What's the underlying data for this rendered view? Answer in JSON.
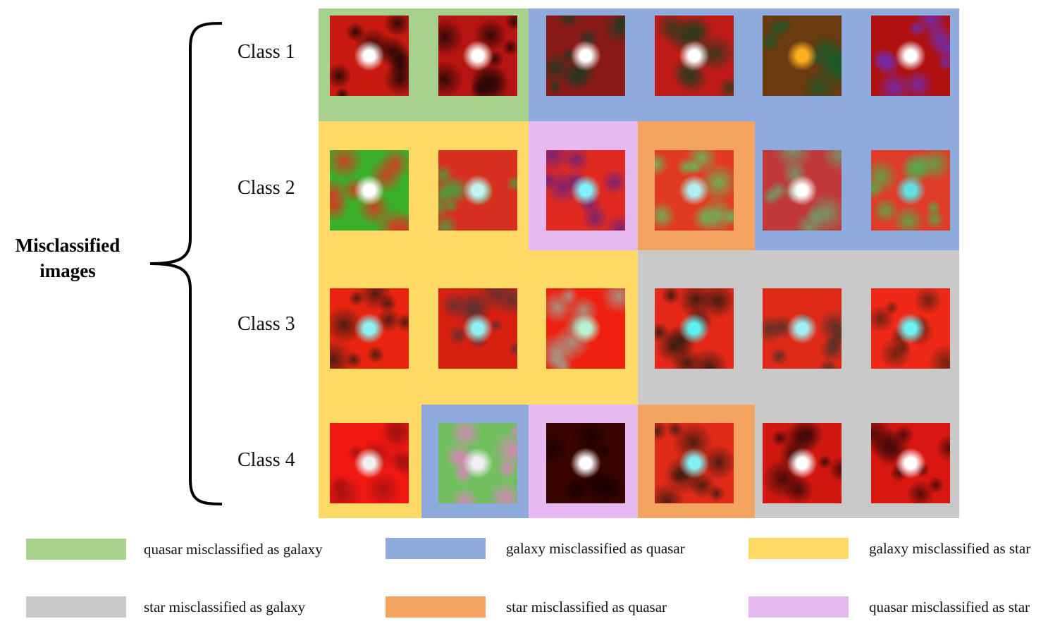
{
  "title": {
    "line1": "Misclassified",
    "line2": "images"
  },
  "colors": {
    "quasar_as_galaxy": "#a9d18e",
    "galaxy_as_quasar": "#8faadc",
    "galaxy_as_star": "#ffd966",
    "star_as_galaxy": "#c9c9c9",
    "star_as_quasar": "#f4a460",
    "quasar_as_star": "#e6b9f0"
  },
  "rows": [
    {
      "label": "Class 1",
      "cells": [
        "quasar_as_galaxy",
        "quasar_as_galaxy",
        "galaxy_as_quasar",
        "galaxy_as_quasar",
        "galaxy_as_quasar",
        "galaxy_as_quasar"
      ]
    },
    {
      "label": "Class 2",
      "cells": [
        "galaxy_as_star",
        "galaxy_as_star",
        "quasar_as_star",
        "star_as_quasar",
        "galaxy_as_quasar",
        "galaxy_as_quasar"
      ]
    },
    {
      "label": "Class 3",
      "cells": [
        "galaxy_as_star",
        "galaxy_as_star",
        "galaxy_as_star",
        "star_as_galaxy",
        "star_as_galaxy",
        "star_as_galaxy"
      ]
    },
    {
      "label": "Class 4",
      "cells": [
        "galaxy_as_star",
        "galaxy_as_quasar",
        "quasar_as_star",
        "star_as_quasar",
        "star_as_galaxy",
        "star_as_galaxy"
      ]
    }
  ],
  "legend": [
    {
      "key": "quasar_as_galaxy",
      "label": "quasar misclassified as galaxy"
    },
    {
      "key": "galaxy_as_quasar",
      "label": "galaxy misclassified as quasar"
    },
    {
      "key": "galaxy_as_star",
      "label": "galaxy misclassified as star"
    },
    {
      "key": "star_as_galaxy",
      "label": "star misclassified as galaxy"
    },
    {
      "key": "star_as_quasar",
      "label": "star misclassified as quasar"
    },
    {
      "key": "quasar_as_star",
      "label": "quasar misclassified as star"
    }
  ],
  "thumbnails": [
    [
      {
        "base": "#c81a10",
        "accent": "#1a0504",
        "core": "#ffffff"
      },
      {
        "base": "#b51410",
        "accent": "#200606",
        "core": "#ffffff"
      },
      {
        "base": "#8a1a18",
        "accent": "#1c3a20",
        "core": "#ffffff"
      },
      {
        "base": "#c01a18",
        "accent": "#2a3a1c",
        "core": "#ffffff"
      },
      {
        "base": "#6a3a10",
        "accent": "#1a5a2a",
        "core": "#ffb020"
      },
      {
        "base": "#b01010",
        "accent": "#6a30c0",
        "core": "#ffffff"
      }
    ],
    [
      {
        "base": "#3ab02a",
        "accent": "#e03020",
        "core": "#ffffff"
      },
      {
        "base": "#d83020",
        "accent": "#4aa040",
        "core": "#bff5f0"
      },
      {
        "base": "#e02a20",
        "accent": "#6a2080",
        "core": "#7ff0ff"
      },
      {
        "base": "#e23a20",
        "accent": "#60c060",
        "core": "#b0f0f0"
      },
      {
        "base": "#c03838",
        "accent": "#70a070",
        "core": "#ffffff"
      },
      {
        "base": "#e03a28",
        "accent": "#50b050",
        "core": "#60e0e0"
      }
    ],
    [
      {
        "base": "#e82410",
        "accent": "#3a1a10",
        "core": "#8ff0f0"
      },
      {
        "base": "#d82010",
        "accent": "#5a3030",
        "core": "#8ff0f0"
      },
      {
        "base": "#f02010",
        "accent": "#a0a090",
        "core": "#b8f0d0"
      },
      {
        "base": "#e52818",
        "accent": "#2a1a10",
        "core": "#60f0f0"
      },
      {
        "base": "#e02a18",
        "accent": "#4a3028",
        "core": "#a0f0f0"
      },
      {
        "base": "#f02818",
        "accent": "#5a2010",
        "core": "#70f0f0"
      }
    ],
    [
      {
        "base": "#f01810",
        "accent": "#a01010",
        "core": "#f0f0f0"
      },
      {
        "base": "#70c060",
        "accent": "#e080c0",
        "core": "#f0f0f0"
      },
      {
        "base": "#3a0400",
        "accent": "#1a0000",
        "core": "#ffffff"
      },
      {
        "base": "#e22a18",
        "accent": "#3a1a10",
        "core": "#80f0f0"
      },
      {
        "base": "#d01810",
        "accent": "#300808",
        "core": "#ffffff"
      },
      {
        "base": "#d81810",
        "accent": "#400808",
        "core": "#ffffff"
      }
    ]
  ]
}
